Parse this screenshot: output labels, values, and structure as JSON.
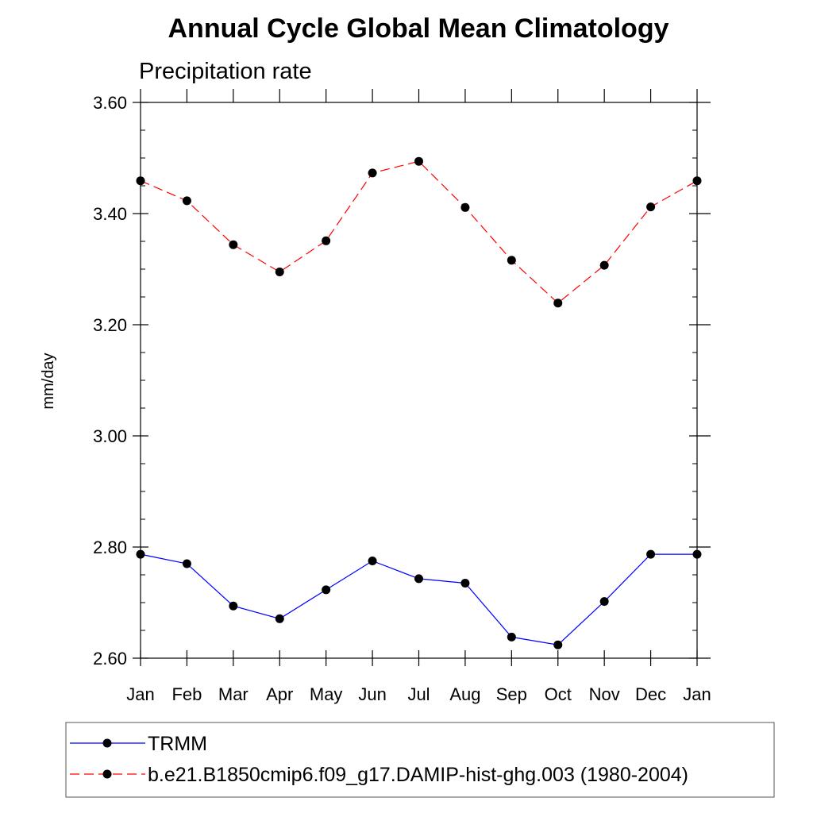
{
  "chart_data": {
    "type": "line",
    "title": "Annual Cycle Global Mean Climatology",
    "subtitle": "Precipitation rate",
    "ylabel": "mm/day",
    "xlabel": "",
    "categories": [
      "Jan",
      "Feb",
      "Mar",
      "Apr",
      "May",
      "Jun",
      "Jul",
      "Aug",
      "Sep",
      "Oct",
      "Nov",
      "Dec",
      "Jan"
    ],
    "ylim": [
      2.6,
      3.6
    ],
    "yticks": [
      2.6,
      2.8,
      3.0,
      3.2,
      3.4,
      3.6
    ],
    "ytick_labels": [
      "2.60",
      "2.80",
      "3.00",
      "3.20",
      "3.40",
      "3.60"
    ],
    "grid": false,
    "legend_position": "bottom",
    "series": [
      {
        "name": "TRMM",
        "color": "#0000ff",
        "line_style": "solid",
        "marker": "circle",
        "values": [
          2.787,
          2.77,
          2.694,
          2.671,
          2.723,
          2.775,
          2.743,
          2.735,
          2.638,
          2.624,
          2.702,
          2.787,
          2.787
        ]
      },
      {
        "name": "b.e21.B1850cmip6.f09_g17.DAMIP-hist-ghg.003 (1980-2004)",
        "color": "#ff0000",
        "line_style": "dashed",
        "marker": "circle",
        "values": [
          3.459,
          3.423,
          3.344,
          3.295,
          3.351,
          3.473,
          3.494,
          3.411,
          3.316,
          3.239,
          3.307,
          3.412,
          3.459
        ]
      }
    ]
  }
}
